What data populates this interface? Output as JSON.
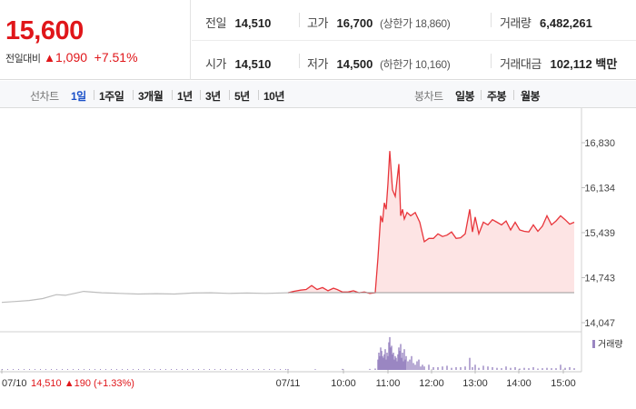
{
  "summary": {
    "current_price": "15,600",
    "change_label": "전일대비",
    "change_arrow": "▲",
    "change_amount": "1,090",
    "change_rate": "+7.51%",
    "prev_close": {
      "label": "전일",
      "value": "14,510"
    },
    "open": {
      "label": "시가",
      "value": "14,510"
    },
    "high": {
      "label": "고가",
      "value": "16,700",
      "limit": "(상한가 18,860)"
    },
    "low": {
      "label": "저가",
      "value": "14,500",
      "limit": "(하한가 10,160)"
    },
    "volume": {
      "label": "거래량",
      "value": "6,482,261"
    },
    "trade_value": {
      "label": "거래대금",
      "value": "102,112",
      "unit": "백만"
    }
  },
  "toolbar": {
    "line_chart_label": "선차트",
    "line_periods": [
      "1일",
      "1주일",
      "3개월",
      "1년",
      "3년",
      "5년",
      "10년"
    ],
    "active_period": "1일",
    "candle_chart_label": "봉차트",
    "candle_periods": [
      "일봉",
      "주봉",
      "월봉"
    ]
  },
  "colors": {
    "up": "#e0161a",
    "down": "#1a6ad6",
    "active_tab": "#1a50c8",
    "price_line_today": "#e8353b",
    "price_fill_today": "#fde4e4",
    "price_line_prev": "#bdbdbd",
    "volume_bar": "#9a86c2"
  },
  "chart_data": {
    "type": "line",
    "price_axis": {
      "ticks": [
        "16,830",
        "16,134",
        "15,439",
        "14,743",
        "14,047"
      ],
      "ylim": [
        14047,
        16830
      ]
    },
    "baseline_price": 14510,
    "x_ticks": [
      "07/11",
      "10:00",
      "11:00",
      "12:00",
      "13:00",
      "14:00",
      "15:00"
    ],
    "prev_day_label": "07/10",
    "prev_day_summary": {
      "price": "14,510",
      "arrow": "▲",
      "change": "190",
      "rate": "(+1.33%)"
    },
    "prev_day_series": {
      "name": "07/10",
      "t": [
        0,
        15,
        30,
        45,
        60,
        70,
        80,
        90,
        110,
        130,
        150,
        170,
        190,
        210,
        230,
        250,
        270,
        290,
        315
      ],
      "values": [
        14360,
        14375,
        14390,
        14420,
        14480,
        14470,
        14500,
        14530,
        14510,
        14500,
        14490,
        14495,
        14490,
        14505,
        14510,
        14500,
        14505,
        14500,
        14510
      ]
    },
    "today_series": {
      "name": "07/11",
      "t": [
        0,
        6,
        14,
        20,
        26,
        32,
        38,
        44,
        50,
        54,
        60,
        66,
        72,
        78,
        84,
        90,
        96,
        99,
        102,
        104,
        106,
        108,
        110,
        112,
        115,
        118,
        122,
        124,
        126,
        128,
        131,
        135,
        140,
        145,
        150,
        155,
        160,
        165,
        170,
        175,
        180,
        185,
        190,
        195,
        200,
        203,
        206,
        210,
        215,
        220,
        225,
        230,
        235,
        240,
        245,
        250,
        255,
        260,
        265,
        270,
        275,
        280,
        285,
        290,
        295,
        300,
        305,
        310,
        315
      ],
      "values": [
        14510,
        14530,
        14550,
        14560,
        14620,
        14560,
        14590,
        14540,
        14580,
        14560,
        14520,
        14520,
        14540,
        14510,
        14520,
        14500,
        14510,
        15050,
        15700,
        15600,
        15900,
        15800,
        16200,
        16700,
        16100,
        16000,
        16500,
        15700,
        15800,
        15650,
        15750,
        15700,
        15750,
        15600,
        15300,
        15350,
        15350,
        15420,
        15380,
        15400,
        15450,
        15350,
        15360,
        15420,
        15800,
        15450,
        15680,
        15420,
        15600,
        15560,
        15640,
        15600,
        15560,
        15620,
        15480,
        15600,
        15480,
        15460,
        15450,
        15560,
        15460,
        15540,
        15700,
        15560,
        15620,
        15700,
        15640,
        15570,
        15600
      ]
    },
    "volume_series": {
      "name": "거래량",
      "t": [
        0,
        30,
        60,
        90,
        96,
        99,
        100,
        101,
        102,
        103,
        104,
        105,
        106,
        107,
        108,
        109,
        110,
        111,
        112,
        113,
        114,
        115,
        116,
        117,
        118,
        119,
        120,
        121,
        122,
        123,
        124,
        125,
        126,
        127,
        128,
        129,
        130,
        132,
        134,
        136,
        138,
        140,
        142,
        144,
        146,
        148,
        150,
        155,
        160,
        165,
        170,
        175,
        180,
        185,
        190,
        195,
        200,
        203,
        206,
        210,
        215,
        220,
        225,
        230,
        235,
        240,
        245,
        250,
        255,
        260,
        265,
        270,
        275,
        280,
        285,
        290,
        295,
        300,
        305,
        310,
        315
      ],
      "values": [
        0.2,
        0.2,
        0.3,
        0.3,
        0.4,
        3.0,
        5.0,
        4.0,
        6.5,
        5.5,
        4.0,
        3.5,
        4.5,
        6.0,
        3.0,
        5.0,
        4.0,
        8.0,
        9.5,
        6.5,
        7.0,
        4.5,
        5.0,
        3.0,
        4.0,
        3.5,
        2.5,
        4.5,
        6.5,
        5.5,
        7.5,
        3.5,
        5.0,
        2.5,
        6.0,
        3.0,
        4.0,
        2.5,
        3.0,
        4.0,
        2.0,
        1.5,
        2.5,
        3.0,
        1.0,
        1.5,
        1.0,
        1.5,
        0.8,
        0.8,
        1.0,
        1.2,
        0.6,
        0.8,
        0.8,
        1.0,
        3.5,
        0.8,
        1.5,
        0.6,
        1.2,
        1.0,
        0.8,
        0.6,
        0.5,
        1.0,
        0.6,
        0.8,
        0.4,
        0.6,
        0.5,
        0.8,
        0.4,
        0.5,
        0.6,
        0.5,
        0.5,
        1.5,
        0.6,
        0.8,
        0.5
      ],
      "ylim": [
        0,
        10
      ]
    },
    "legend": {
      "label": "거래량",
      "placement": "top-right"
    },
    "grid": false
  }
}
